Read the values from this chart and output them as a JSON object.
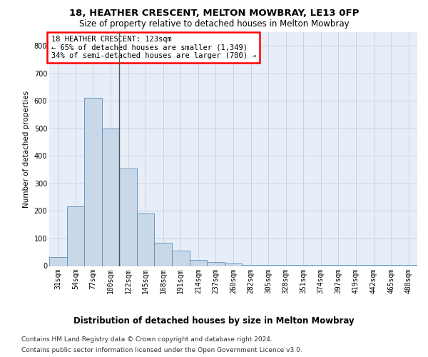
{
  "title": "18, HEATHER CRESCENT, MELTON MOWBRAY, LE13 0FP",
  "subtitle": "Size of property relative to detached houses in Melton Mowbray",
  "xlabel": "Distribution of detached houses by size in Melton Mowbray",
  "ylabel": "Number of detached properties",
  "bar_color": "#c8d8e8",
  "bar_edge_color": "#5b8db8",
  "grid_color": "#c8d4e4",
  "bg_color": "#e8eef8",
  "annotation_text": "18 HEATHER CRESCENT: 123sqm\n← 65% of detached houses are smaller (1,349)\n34% of semi-detached houses are larger (700) →",
  "vline_color": "#555555",
  "vline_x_index": 3.5,
  "categories": [
    "31sqm",
    "54sqm",
    "77sqm",
    "100sqm",
    "122sqm",
    "145sqm",
    "168sqm",
    "191sqm",
    "214sqm",
    "237sqm",
    "260sqm",
    "282sqm",
    "305sqm",
    "328sqm",
    "351sqm",
    "374sqm",
    "397sqm",
    "419sqm",
    "442sqm",
    "465sqm",
    "488sqm"
  ],
  "values": [
    32,
    218,
    610,
    500,
    355,
    190,
    85,
    55,
    22,
    15,
    8,
    5,
    5,
    4,
    4,
    4,
    4,
    3,
    3,
    3,
    3
  ],
  "ylim": [
    0,
    850
  ],
  "yticks": [
    0,
    100,
    200,
    300,
    400,
    500,
    600,
    700,
    800
  ],
  "footer_line1": "Contains HM Land Registry data © Crown copyright and database right 2024.",
  "footer_line2": "Contains public sector information licensed under the Open Government Licence v3.0.",
  "footer_fontsize": 6.5,
  "title_fontsize": 9.5,
  "subtitle_fontsize": 8.5,
  "xlabel_fontsize": 8.5,
  "ylabel_fontsize": 7.5,
  "tick_fontsize": 7.0,
  "annotation_fontsize": 7.5
}
